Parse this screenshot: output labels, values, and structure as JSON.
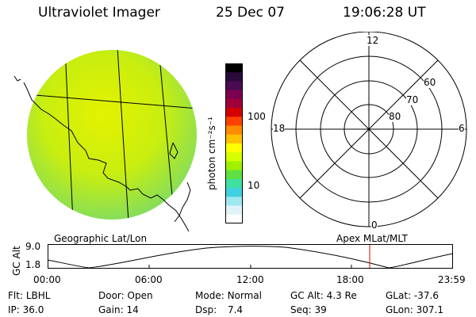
{
  "header": {
    "title": "Ultraviolet Imager",
    "date": "25 Dec 07",
    "time": "19:06:28 UT"
  },
  "colorbar": {
    "unit_label": "photon cm⁻²s⁻¹",
    "ticks": [
      {
        "label": "100",
        "value": 100
      },
      {
        "label": "10",
        "value": 10
      }
    ],
    "colors": [
      "#000000",
      "#2a0a3a",
      "#4b0a52",
      "#7a0050",
      "#a0003a",
      "#d40000",
      "#ff4000",
      "#ff8c00",
      "#ffc000",
      "#ffff00",
      "#d8ff00",
      "#a0f000",
      "#60e040",
      "#40e0a0",
      "#40d0e0",
      "#a0e8f0",
      "#e0f4f8",
      "#ffffff"
    ]
  },
  "map": {
    "name": "Geographic Lat/Lon",
    "fill_inner": "#d6f000",
    "fill_outer": "#88e060"
  },
  "polar": {
    "name": "Apex MLat/MLT",
    "mlt_labels": {
      "top": "12",
      "left": "18",
      "right": "6",
      "bottom": "0"
    },
    "lat_labels": [
      "60",
      "70",
      "80"
    ]
  },
  "altitude_plot": {
    "axis_label": "GC Alt",
    "y_ticks": [
      "9.0",
      "1.8"
    ],
    "x_ticks": [
      "00:00",
      "06:00",
      "12:00",
      "18:00",
      "23:59"
    ],
    "marker_color": "#d40000"
  },
  "info": {
    "flt_label": "Flt:",
    "flt_value": "LBHL",
    "door_label": "Door:",
    "door_value": "Open",
    "mode_label": "Mode:",
    "mode_value": "Normal",
    "gcalt_label": "GC Alt:",
    "gcalt_value": "4.3 Re",
    "glat_label": "GLat:",
    "glat_value": "-37.6",
    "ip_label": "IP:",
    "ip_value": "36.0",
    "gain_label": "Gain:",
    "gain_value": "14",
    "dsp_label": "Dsp:",
    "dsp_value": "7.4",
    "seq_label": "Seq:",
    "seq_value": "39",
    "glon_label": "GLon:",
    "glon_value": "307.1"
  }
}
